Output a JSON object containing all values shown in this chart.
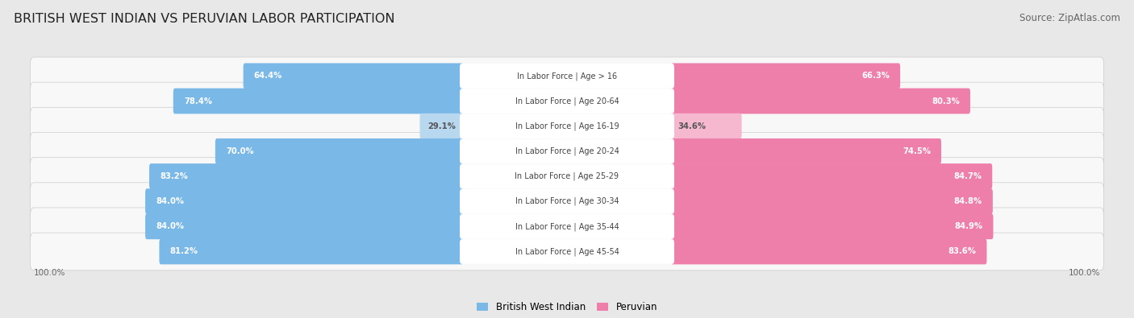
{
  "title": "BRITISH WEST INDIAN VS PERUVIAN LABOR PARTICIPATION",
  "source": "Source: ZipAtlas.com",
  "categories": [
    "In Labor Force | Age > 16",
    "In Labor Force | Age 20-64",
    "In Labor Force | Age 16-19",
    "In Labor Force | Age 20-24",
    "In Labor Force | Age 25-29",
    "In Labor Force | Age 30-34",
    "In Labor Force | Age 35-44",
    "In Labor Force | Age 45-54"
  ],
  "british": [
    64.4,
    78.4,
    29.1,
    70.0,
    83.2,
    84.0,
    84.0,
    81.2
  ],
  "peruvian": [
    66.3,
    80.3,
    34.6,
    74.5,
    84.7,
    84.8,
    84.9,
    83.6
  ],
  "british_color": "#7ab8e8",
  "peruvian_color": "#ee7faa",
  "british_light": "#b8d8f0",
  "peruvian_light": "#f5b8cf",
  "bg_color": "#e8e8e8",
  "row_bg": "#f8f8f8",
  "max_val": 100.0,
  "label_color": "#444444",
  "value_color_on_bar": "white",
  "value_color_off_bar": "#555555"
}
